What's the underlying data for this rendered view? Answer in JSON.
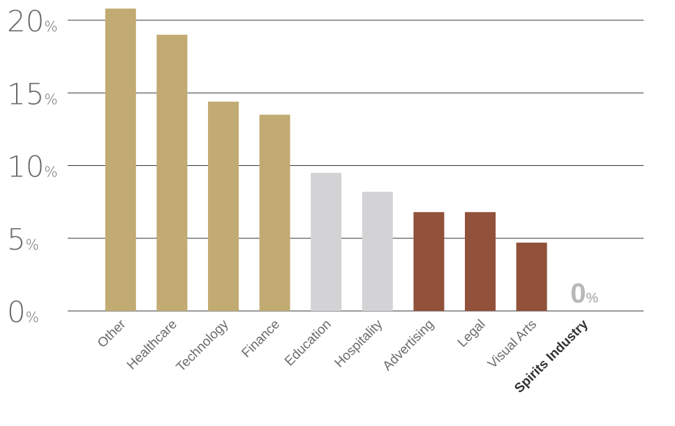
{
  "chart_data": {
    "type": "bar",
    "categories": [
      "Other",
      "Healthcare",
      "Technology",
      "Finance",
      "Education",
      "Hospitality",
      "Advertising",
      "Legal",
      "Visual Arts",
      "Spirits Industry"
    ],
    "values": [
      20.8,
      19.0,
      14.4,
      13.5,
      9.5,
      8.2,
      6.8,
      6.8,
      4.7,
      0
    ],
    "value_labels": [
      null,
      null,
      null,
      null,
      null,
      null,
      null,
      null,
      null,
      "0%"
    ],
    "colors": [
      "#c2ab72",
      "#c2ab72",
      "#c2ab72",
      "#c2ab72",
      "#d3d3d5",
      "#d3d3d5",
      "#91513a",
      "#91513a",
      "#91513a",
      "#91513a"
    ],
    "bold_labels": [
      false,
      false,
      false,
      false,
      false,
      false,
      false,
      false,
      false,
      true
    ],
    "ylim": [
      0,
      20
    ],
    "yticks": [
      {
        "value": 0,
        "label": "0%"
      },
      {
        "value": 5,
        "label": "5%"
      },
      {
        "value": 10,
        "label": "10%"
      },
      {
        "value": 15,
        "label": "15%"
      },
      {
        "value": 20,
        "label": "20%"
      }
    ],
    "grid": true
  }
}
